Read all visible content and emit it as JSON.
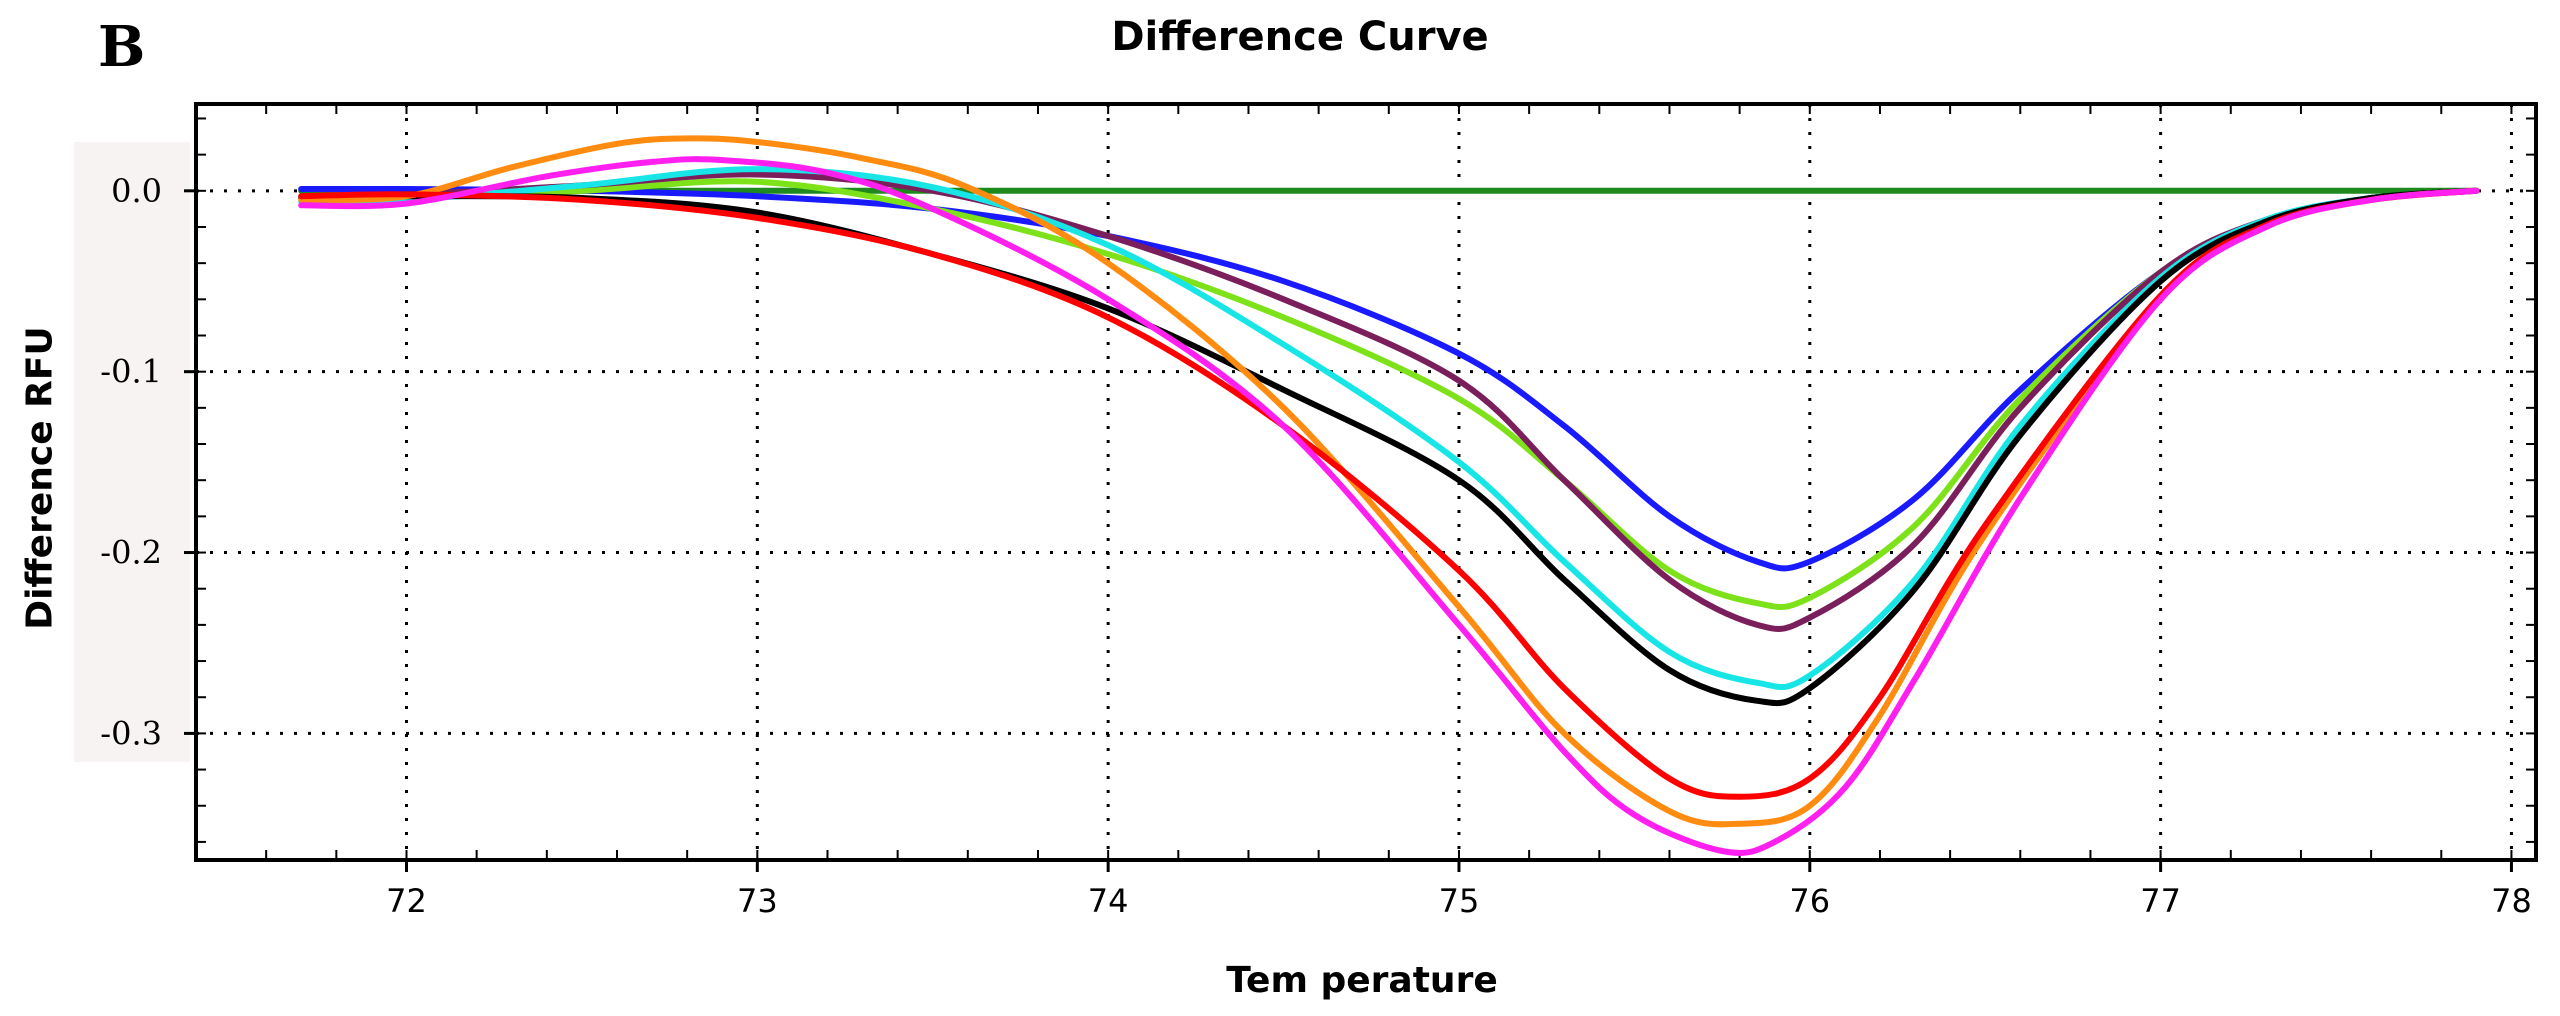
{
  "panel_label": "B",
  "chart_data": {
    "type": "line",
    "title": "Difference Curve",
    "xlabel": "Tem perature",
    "ylabel": "Difference RFU",
    "xlim": [
      71.4,
      78.07
    ],
    "ylim": [
      -0.37,
      0.048
    ],
    "x_ticks": [
      72,
      73,
      74,
      75,
      76,
      77,
      78
    ],
    "x_tick_labels": [
      "72",
      "73",
      "74",
      "75",
      "76",
      "77",
      "78"
    ],
    "y_ticks": [
      0.0,
      -0.1,
      -0.2,
      -0.3
    ],
    "y_tick_labels": [
      "0.0",
      "-0.1",
      "-0.2",
      "-0.3"
    ],
    "grid": true,
    "series": [
      {
        "name": "green",
        "color": "#1e8a1e",
        "x": [
          71.7,
          72.5,
          73.5,
          74.5,
          75.5,
          76.0,
          76.5,
          77.0,
          77.5,
          77.9
        ],
        "y": [
          0.0,
          0.0,
          0.0,
          0.0,
          0.0,
          0.0,
          0.0,
          0.0,
          0.0,
          0.0
        ]
      },
      {
        "name": "blue",
        "color": "#1a1aff",
        "x": [
          71.7,
          72.0,
          72.5,
          73.0,
          73.5,
          74.0,
          74.5,
          75.0,
          75.3,
          75.6,
          75.85,
          76.0,
          76.3,
          76.6,
          77.0,
          77.3,
          77.6,
          77.9
        ],
        "y": [
          0.001,
          0.001,
          0.0,
          -0.003,
          -0.01,
          -0.025,
          -0.05,
          -0.09,
          -0.13,
          -0.18,
          -0.205,
          -0.205,
          -0.17,
          -0.11,
          -0.045,
          -0.016,
          -0.004,
          0.0
        ]
      },
      {
        "name": "chartreuse",
        "color": "#7ee21a",
        "x": [
          71.7,
          72.0,
          72.5,
          73.0,
          73.5,
          74.0,
          74.5,
          75.0,
          75.3,
          75.6,
          75.85,
          76.0,
          76.3,
          76.6,
          77.0,
          77.3,
          77.6,
          77.9
        ],
        "y": [
          -0.004,
          -0.004,
          0.0,
          0.005,
          -0.01,
          -0.035,
          -0.07,
          -0.115,
          -0.16,
          -0.21,
          -0.228,
          -0.225,
          -0.185,
          -0.115,
          -0.045,
          -0.016,
          -0.004,
          0.0
        ]
      },
      {
        "name": "purple",
        "color": "#7a1f5c",
        "x": [
          71.7,
          72.0,
          72.5,
          73.0,
          73.5,
          74.0,
          74.5,
          75.0,
          75.3,
          75.6,
          75.85,
          76.0,
          76.3,
          76.6,
          77.0,
          77.3,
          77.6,
          77.9
        ],
        "y": [
          -0.003,
          -0.002,
          0.003,
          0.009,
          0.0,
          -0.025,
          -0.06,
          -0.105,
          -0.16,
          -0.215,
          -0.24,
          -0.236,
          -0.195,
          -0.12,
          -0.045,
          -0.016,
          -0.004,
          0.0
        ]
      },
      {
        "name": "cyan",
        "color": "#18e6e6",
        "x": [
          71.7,
          72.0,
          72.5,
          73.0,
          73.5,
          74.0,
          74.5,
          75.0,
          75.3,
          75.6,
          75.85,
          76.0,
          76.3,
          76.6,
          77.0,
          77.3,
          77.6,
          77.9
        ],
        "y": [
          -0.006,
          -0.005,
          0.003,
          0.012,
          0.002,
          -0.03,
          -0.085,
          -0.15,
          -0.205,
          -0.255,
          -0.272,
          -0.268,
          -0.215,
          -0.13,
          -0.048,
          -0.016,
          -0.004,
          0.0
        ]
      },
      {
        "name": "black",
        "color": "#000000",
        "x": [
          71.7,
          72.0,
          72.5,
          73.0,
          73.5,
          74.0,
          74.5,
          75.0,
          75.3,
          75.6,
          75.85,
          76.0,
          76.3,
          76.6,
          77.0,
          77.3,
          77.6,
          77.9
        ],
        "y": [
          -0.004,
          -0.003,
          -0.004,
          -0.012,
          -0.035,
          -0.065,
          -0.11,
          -0.16,
          -0.215,
          -0.265,
          -0.282,
          -0.275,
          -0.22,
          -0.135,
          -0.05,
          -0.017,
          -0.004,
          0.0
        ]
      },
      {
        "name": "orange",
        "color": "#ff8c10",
        "x": [
          71.7,
          72.0,
          72.3,
          72.6,
          72.8,
          73.0,
          73.3,
          73.6,
          74.0,
          74.5,
          75.0,
          75.3,
          75.6,
          75.8,
          76.0,
          76.2,
          76.5,
          77.0,
          77.3,
          77.6,
          77.9
        ],
        "y": [
          -0.005,
          -0.003,
          0.013,
          0.026,
          0.029,
          0.027,
          0.018,
          0.002,
          -0.04,
          -0.12,
          -0.23,
          -0.3,
          -0.343,
          -0.35,
          -0.34,
          -0.29,
          -0.19,
          -0.06,
          -0.02,
          -0.005,
          0.0
        ]
      },
      {
        "name": "red",
        "color": "#ff0000",
        "x": [
          71.7,
          72.0,
          72.5,
          73.0,
          73.5,
          74.0,
          74.5,
          75.0,
          75.3,
          75.6,
          75.8,
          76.0,
          76.2,
          76.5,
          77.0,
          77.3,
          77.6,
          77.9
        ],
        "y": [
          -0.003,
          -0.002,
          -0.005,
          -0.015,
          -0.035,
          -0.07,
          -0.13,
          -0.21,
          -0.275,
          -0.325,
          -0.335,
          -0.325,
          -0.28,
          -0.185,
          -0.058,
          -0.019,
          -0.005,
          0.0
        ]
      },
      {
        "name": "magenta",
        "color": "#ff20f0",
        "x": [
          71.7,
          72.0,
          72.4,
          72.7,
          72.9,
          73.2,
          73.5,
          74.0,
          74.5,
          75.0,
          75.3,
          75.5,
          75.75,
          75.9,
          76.1,
          76.3,
          76.6,
          77.0,
          77.3,
          77.6,
          77.9
        ],
        "y": [
          -0.008,
          -0.007,
          0.008,
          0.016,
          0.017,
          0.01,
          -0.01,
          -0.06,
          -0.13,
          -0.24,
          -0.31,
          -0.345,
          -0.365,
          -0.36,
          -0.33,
          -0.27,
          -0.17,
          -0.06,
          -0.02,
          -0.005,
          0.0
        ]
      }
    ]
  }
}
